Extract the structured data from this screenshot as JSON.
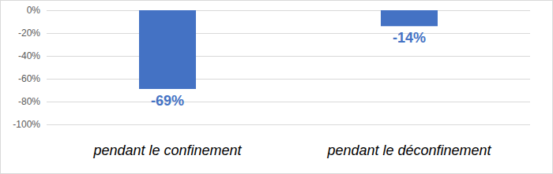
{
  "chart_data": {
    "type": "bar",
    "categories": [
      "pendant le confinement",
      "pendant le déconfinement"
    ],
    "values": [
      -69,
      -14
    ],
    "value_labels": [
      "-69%",
      "-14%"
    ],
    "color": "#4472c4",
    "ylim": [
      -100,
      0
    ],
    "yticks": [
      {
        "value": -100,
        "label": "-100%"
      },
      {
        "value": -80,
        "label": "-80%"
      },
      {
        "value": -60,
        "label": "-60%"
      },
      {
        "value": -40,
        "label": "-40%"
      },
      {
        "value": -20,
        "label": "-20%"
      },
      {
        "value": 0,
        "label": "0%"
      }
    ],
    "grid": true,
    "data_labels": true
  }
}
